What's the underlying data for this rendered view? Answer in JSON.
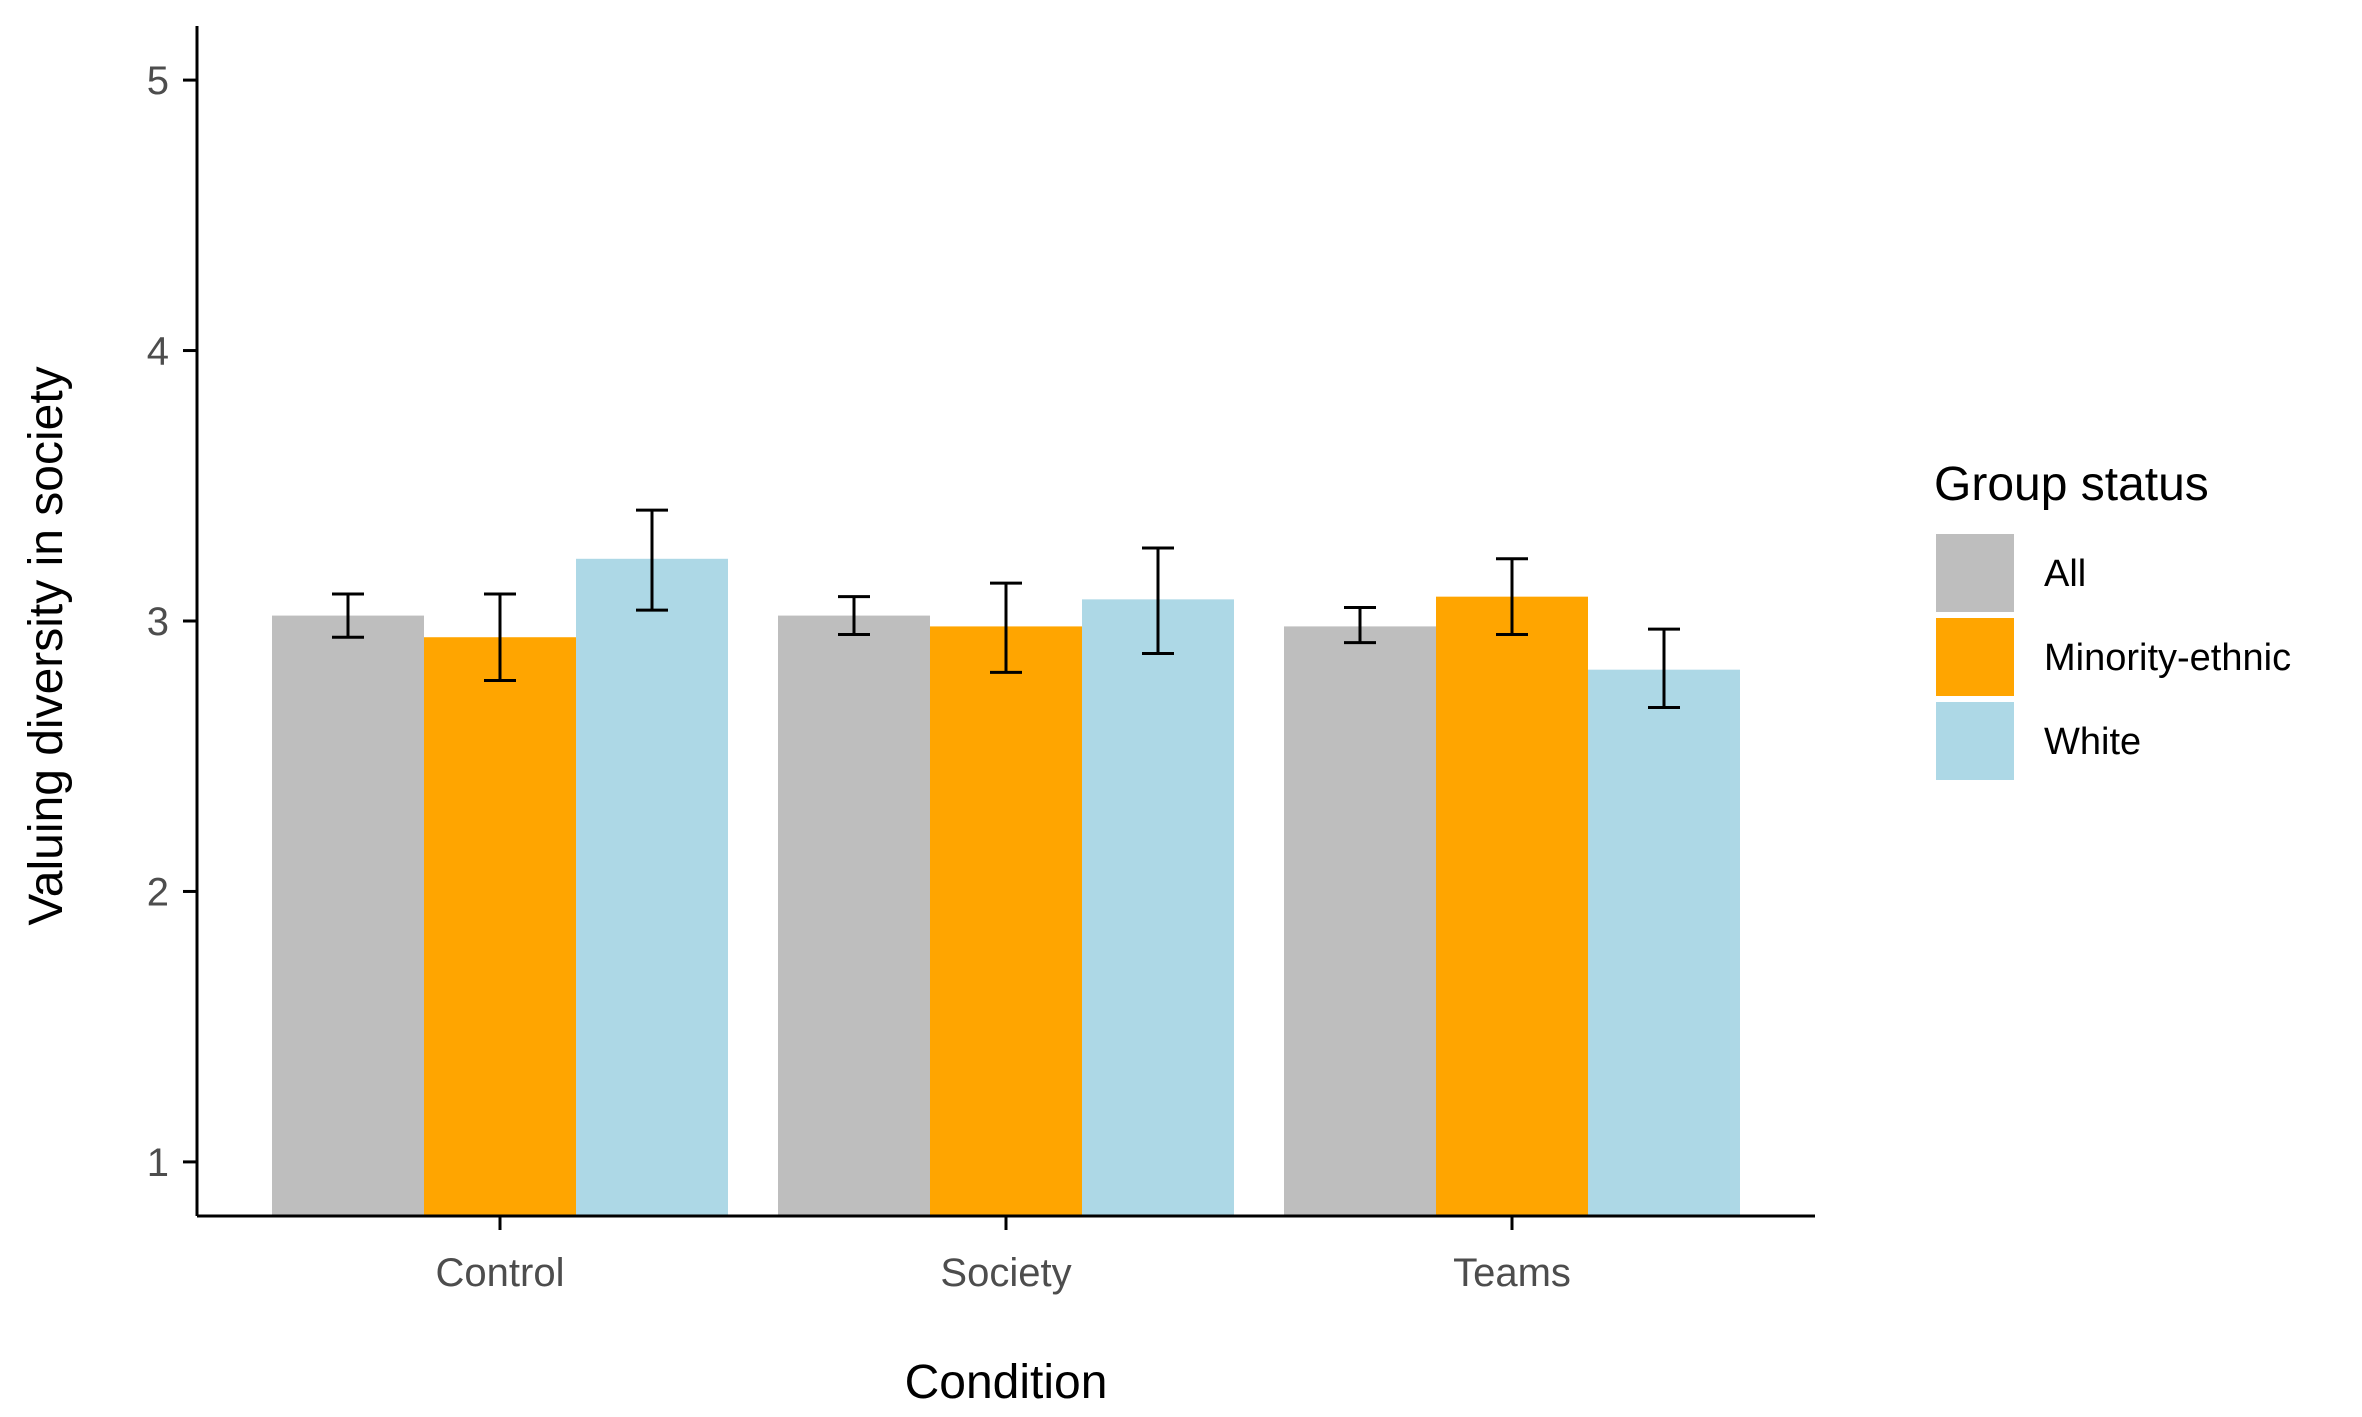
{
  "chart_data": {
    "type": "bar",
    "xlabel": "Condition",
    "ylabel": "Valuing diversity in society",
    "ylim": [
      0.8,
      5.2
    ],
    "yticks": [
      1,
      2,
      3,
      4,
      5
    ],
    "grid": false,
    "categories": [
      "Control",
      "Society",
      "Teams"
    ],
    "legend": {
      "title": "Group status",
      "placement": "right"
    },
    "series": [
      {
        "name": "All",
        "color": "#bebebe",
        "values": [
          3.02,
          3.02,
          2.98
        ],
        "err_low": [
          2.94,
          2.95,
          2.92
        ],
        "err_high": [
          3.1,
          3.09,
          3.05
        ]
      },
      {
        "name": "Minority-ethnic",
        "color": "#ffa500",
        "values": [
          2.94,
          2.98,
          3.09
        ],
        "err_low": [
          2.78,
          2.81,
          2.95
        ],
        "err_high": [
          3.1,
          3.14,
          3.23
        ]
      },
      {
        "name": "White",
        "color": "#add8e6",
        "values": [
          3.23,
          3.08,
          2.82
        ],
        "err_low": [
          3.04,
          2.88,
          2.68
        ],
        "err_high": [
          3.41,
          3.27,
          2.97
        ]
      }
    ]
  }
}
